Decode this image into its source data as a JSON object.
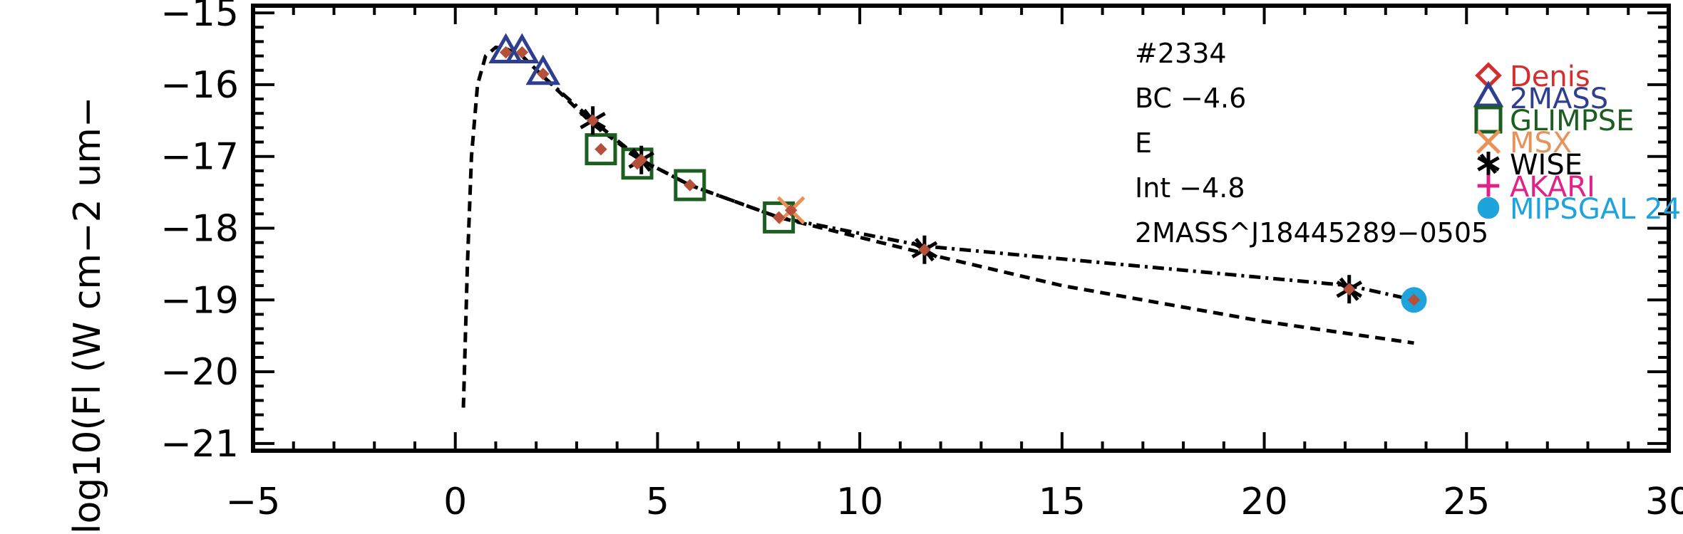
{
  "chart_data": {
    "type": "scatter",
    "title": "",
    "xlabel": "",
    "ylabel": "log10(Fl (W cm−2 um−",
    "xlim": [
      -5,
      30
    ],
    "ylim": [
      -21.1,
      -14.9
    ],
    "x_ticks": [
      "−5",
      "0",
      "5",
      "10",
      "15",
      "20",
      "25",
      "30"
    ],
    "y_ticks": [
      "−15",
      "−16",
      "−17",
      "−18",
      "−19",
      "−20",
      "−21"
    ],
    "annotations": [
      "#2334",
      "BC −4.6",
      "E",
      "Int −4.8",
      "2MASS^J18445289−0505"
    ],
    "legend": [
      {
        "name": "Denis",
        "color": "#d32f2f",
        "marker": "diamond"
      },
      {
        "name": "2MASS",
        "color": "#2e3f8f",
        "marker": "triangle"
      },
      {
        "name": "GLIMPSE",
        "color": "#1b5e20",
        "marker": "square"
      },
      {
        "name": "MSX",
        "color": "#e8925a",
        "marker": "x"
      },
      {
        "name": "WISE",
        "color": "#000000",
        "marker": "asterisk"
      },
      {
        "name": "AKARI",
        "color": "#e0228a",
        "marker": "plus"
      },
      {
        "name": "MIPSGAL 24",
        "color": "#1fa3dc",
        "marker": "circle"
      }
    ],
    "series": [
      {
        "marker": "triangle",
        "color": "#2e3f8f",
        "x": [
          1.25,
          1.65,
          2.17
        ],
        "y": [
          -15.55,
          -15.55,
          -15.85
        ]
      },
      {
        "marker": "square",
        "color": "#1b5e20",
        "x": [
          3.6,
          4.5,
          5.8,
          8.0
        ],
        "y": [
          -16.9,
          -17.1,
          -17.4,
          -17.85
        ]
      },
      {
        "marker": "x",
        "color": "#e8925a",
        "x": [
          8.3
        ],
        "y": [
          -17.75
        ]
      },
      {
        "marker": "asterisk",
        "color": "#000000",
        "x": [
          3.4,
          4.6,
          11.6,
          22.1
        ],
        "y": [
          -16.5,
          -17.05,
          -18.3,
          -18.85
        ]
      },
      {
        "marker": "circle",
        "color": "#1fa3dc",
        "x": [
          23.7
        ],
        "y": [
          -19.0
        ]
      },
      {
        "marker": "small-diamond",
        "color": "#b5503a",
        "x": [
          1.25,
          1.65,
          2.17,
          3.4,
          3.6,
          4.5,
          4.6,
          5.8,
          8.0,
          8.3,
          11.6,
          22.1,
          23.7
        ],
        "y": [
          -15.55,
          -15.55,
          -15.85,
          -16.5,
          -16.9,
          -17.1,
          -17.05,
          -17.4,
          -17.85,
          -17.75,
          -18.3,
          -18.85,
          -19.0
        ]
      }
    ],
    "curves": [
      {
        "style": "dashed",
        "color": "#000000",
        "x": [
          0.2,
          0.25,
          0.3,
          0.4,
          0.55,
          0.75,
          1.0,
          1.25,
          1.65,
          2.2,
          3.4,
          4.6,
          5.8,
          8.0,
          11.6,
          15.0,
          20.0,
          23.7
        ],
        "y": [
          -20.5,
          -19.5,
          -18.5,
          -17.0,
          -16.0,
          -15.6,
          -15.48,
          -15.5,
          -15.6,
          -15.9,
          -16.55,
          -17.05,
          -17.4,
          -17.85,
          -18.35,
          -18.8,
          -19.3,
          -19.6
        ]
      },
      {
        "style": "dashdot",
        "color": "#000000",
        "x": [
          2.2,
          3.4,
          4.6,
          5.8,
          8.0,
          11.6,
          22.1,
          23.7
        ],
        "y": [
          -15.9,
          -16.5,
          -17.05,
          -17.4,
          -17.85,
          -18.25,
          -18.8,
          -19.0
        ]
      }
    ]
  }
}
